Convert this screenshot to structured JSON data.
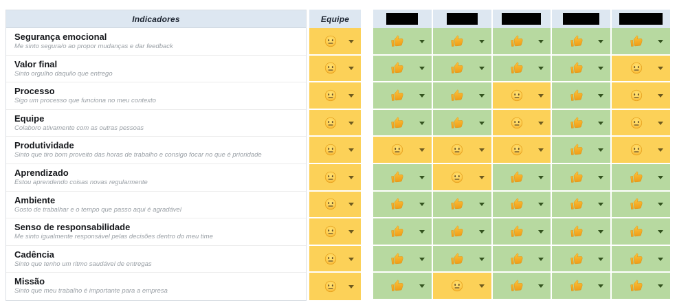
{
  "header": {
    "indicators_label": "Indicadores",
    "team_label": "Equipe",
    "members": [
      {
        "name_redacted": true,
        "redaction_width": 46
      },
      {
        "name_redacted": true,
        "redaction_width": 45
      },
      {
        "name_redacted": true,
        "redaction_width": 57
      },
      {
        "name_redacted": true,
        "redaction_width": 53
      },
      {
        "name_redacted": true,
        "redaction_width": 63
      }
    ]
  },
  "vote_types": {
    "up": "thumbs-up",
    "neutral": "neutral-face"
  },
  "colors": {
    "header_bg": "#dde7f1",
    "positive_bg": "#b7d9a0",
    "neutral_bg": "#fcd158",
    "redaction": "#000000"
  },
  "rows": [
    {
      "title": "Segurança emocional",
      "description": "Me sinto segura/o ao propor mudanças e dar feedback",
      "team_vote": "neutral",
      "member_votes": [
        "up",
        "up",
        "up",
        "up",
        "up"
      ]
    },
    {
      "title": "Valor final",
      "description": "Sinto orgulho daquilo que entrego",
      "team_vote": "neutral",
      "member_votes": [
        "up",
        "up",
        "up",
        "up",
        "neutral"
      ]
    },
    {
      "title": "Processo",
      "description": "Sigo um processo que funciona no meu contexto",
      "team_vote": "neutral",
      "member_votes": [
        "up",
        "up",
        "neutral",
        "up",
        "neutral"
      ]
    },
    {
      "title": "Equipe",
      "description": "Colaboro ativamente com as outras pessoas",
      "team_vote": "neutral",
      "member_votes": [
        "up",
        "up",
        "neutral",
        "up",
        "neutral"
      ]
    },
    {
      "title": "Produtividade",
      "description": "Sinto que tiro bom proveito das horas de trabalho e consigo focar no que é prioridade",
      "team_vote": "neutral",
      "member_votes": [
        "neutral",
        "neutral",
        "neutral",
        "up",
        "neutral"
      ]
    },
    {
      "title": "Aprendizado",
      "description": "Estou aprendendo coisas novas regularmente",
      "team_vote": "neutral",
      "member_votes": [
        "up",
        "neutral",
        "up",
        "up",
        "up"
      ]
    },
    {
      "title": "Ambiente",
      "description": "Gosto de trabalhar e o tempo que passo aqui é agradável",
      "team_vote": "neutral",
      "member_votes": [
        "up",
        "up",
        "up",
        "up",
        "up"
      ]
    },
    {
      "title": "Senso de responsabilidade",
      "description": "Me sinto igualmente responsável pelas decisões dentro do meu time",
      "team_vote": "neutral",
      "member_votes": [
        "up",
        "up",
        "up",
        "up",
        "up"
      ]
    },
    {
      "title": "Cadência",
      "description": "Sinto que tenho um ritmo saudável de entregas",
      "team_vote": "neutral",
      "member_votes": [
        "up",
        "up",
        "up",
        "up",
        "up"
      ]
    },
    {
      "title": "Missão",
      "description": "Sinto que meu trabalho é importante para a empresa",
      "team_vote": "neutral",
      "member_votes": [
        "up",
        "neutral",
        "up",
        "up",
        "up"
      ]
    }
  ]
}
